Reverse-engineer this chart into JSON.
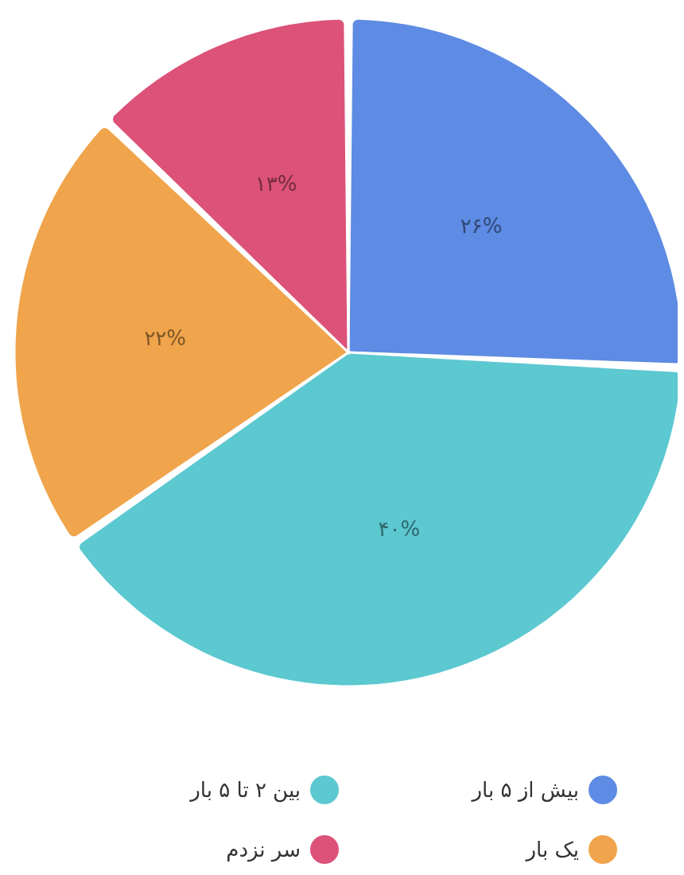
{
  "chart_data": {
    "type": "pie",
    "categories": [
      "بیش از ۵ بار",
      "بین ۲ تا ۵ بار",
      "یک بار",
      "سر نزدم"
    ],
    "values": [
      26,
      40,
      22,
      13
    ],
    "colors": [
      "#5e8be3",
      "#5cc8d0",
      "#f0a44b",
      "#dc5279"
    ],
    "value_labels": [
      "۲۶%",
      "۴۰%",
      "۲۲%",
      "۱۳%"
    ],
    "legend": "bottom"
  }
}
